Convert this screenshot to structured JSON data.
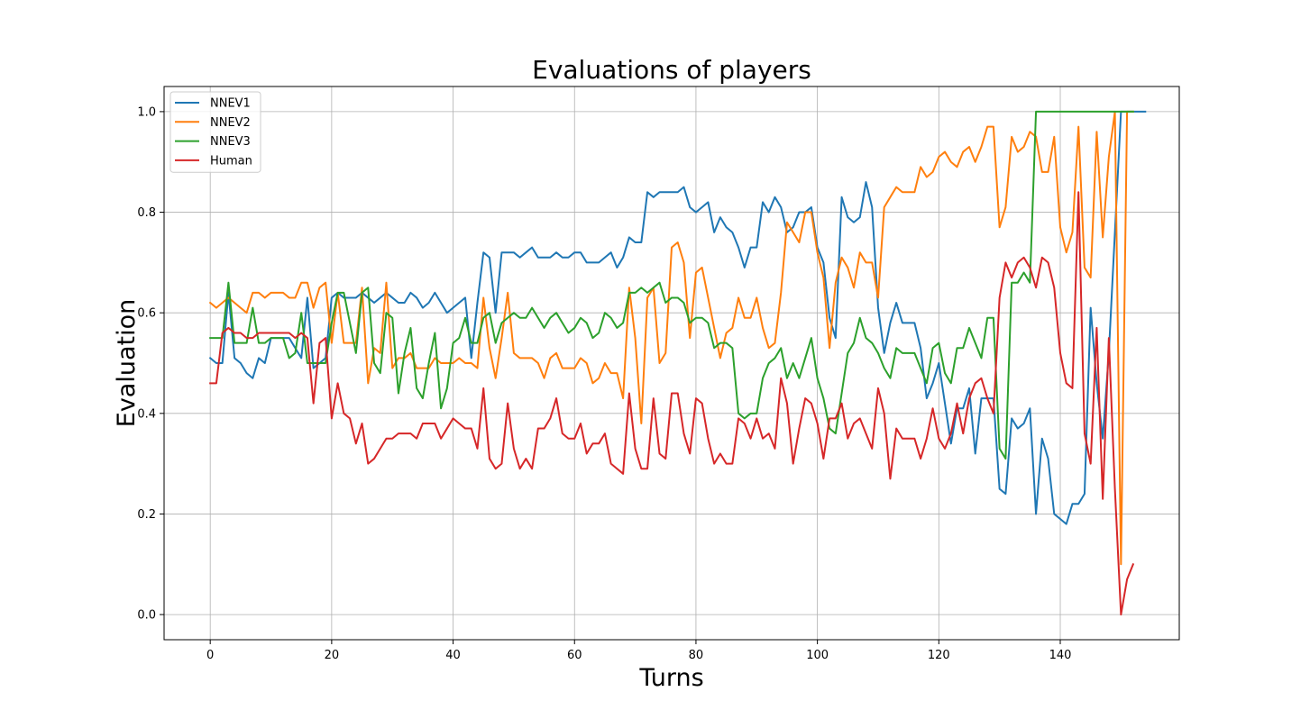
{
  "chart_data": {
    "type": "line",
    "title": "Evaluations of players",
    "xlabel": "Turns",
    "ylabel": "Evaluation",
    "xlim": [
      -7.6,
      159.6
    ],
    "ylim": [
      -0.05,
      1.05
    ],
    "xticks": [
      0,
      20,
      40,
      60,
      80,
      100,
      120,
      140
    ],
    "yticks": [
      0.0,
      0.2,
      0.4,
      0.6,
      0.8,
      1.0
    ],
    "grid": true,
    "legend_position": "top-left",
    "series": [
      {
        "name": "NNEV1",
        "color": "#1f77b4",
        "values": [
          0.51,
          0.5,
          0.5,
          0.64,
          0.51,
          0.5,
          0.48,
          0.47,
          0.51,
          0.5,
          0.55,
          0.55,
          0.55,
          0.55,
          0.53,
          0.51,
          0.63,
          0.49,
          0.5,
          0.51,
          0.63,
          0.64,
          0.63,
          0.63,
          0.63,
          0.64,
          0.63,
          0.62,
          0.63,
          0.64,
          0.63,
          0.62,
          0.62,
          0.64,
          0.63,
          0.61,
          0.62,
          0.64,
          0.62,
          0.6,
          0.61,
          0.62,
          0.63,
          0.51,
          0.62,
          0.72,
          0.71,
          0.6,
          0.72,
          0.72,
          0.72,
          0.71,
          0.72,
          0.73,
          0.71,
          0.71,
          0.71,
          0.72,
          0.71,
          0.71,
          0.72,
          0.72,
          0.7,
          0.7,
          0.7,
          0.71,
          0.72,
          0.69,
          0.71,
          0.75,
          0.74,
          0.74,
          0.84,
          0.83,
          0.84,
          0.84,
          0.84,
          0.84,
          0.85,
          0.81,
          0.8,
          0.81,
          0.82,
          0.76,
          0.79,
          0.77,
          0.76,
          0.73,
          0.69,
          0.73,
          0.73,
          0.82,
          0.8,
          0.83,
          0.81,
          0.76,
          0.77,
          0.8,
          0.8,
          0.81,
          0.73,
          0.7,
          0.59,
          0.55,
          0.83,
          0.79,
          0.78,
          0.79,
          0.86,
          0.81,
          0.61,
          0.52,
          0.58,
          0.62,
          0.58,
          0.58,
          0.58,
          0.53,
          0.43,
          0.46,
          0.5,
          0.42,
          0.34,
          0.41,
          0.41,
          0.45,
          0.32,
          0.43,
          0.43,
          0.43,
          0.25,
          0.24,
          0.39,
          0.37,
          0.38,
          0.41,
          0.2,
          0.35,
          0.31,
          0.2,
          0.19,
          0.18,
          0.22,
          0.22,
          0.24,
          0.61,
          0.46,
          0.35,
          0.52,
          0.76,
          1.0,
          1.0,
          1.0,
          1.0,
          1.0
        ]
      },
      {
        "name": "NNEV2",
        "color": "#ff7f0e",
        "values": [
          0.62,
          0.61,
          0.62,
          0.63,
          0.62,
          0.61,
          0.6,
          0.64,
          0.64,
          0.63,
          0.64,
          0.64,
          0.64,
          0.63,
          0.63,
          0.66,
          0.66,
          0.61,
          0.65,
          0.66,
          0.54,
          0.64,
          0.54,
          0.54,
          0.54,
          0.65,
          0.46,
          0.53,
          0.52,
          0.66,
          0.49,
          0.51,
          0.51,
          0.52,
          0.49,
          0.49,
          0.49,
          0.51,
          0.5,
          0.5,
          0.5,
          0.51,
          0.5,
          0.5,
          0.49,
          0.63,
          0.53,
          0.47,
          0.55,
          0.64,
          0.52,
          0.51,
          0.51,
          0.51,
          0.5,
          0.47,
          0.51,
          0.52,
          0.49,
          0.49,
          0.49,
          0.51,
          0.5,
          0.46,
          0.47,
          0.5,
          0.48,
          0.48,
          0.43,
          0.65,
          0.55,
          0.38,
          0.63,
          0.65,
          0.5,
          0.52,
          0.73,
          0.74,
          0.7,
          0.55,
          0.68,
          0.69,
          0.63,
          0.57,
          0.51,
          0.56,
          0.57,
          0.63,
          0.59,
          0.59,
          0.63,
          0.57,
          0.53,
          0.54,
          0.64,
          0.78,
          0.76,
          0.74,
          0.8,
          0.8,
          0.72,
          0.67,
          0.53,
          0.66,
          0.71,
          0.69,
          0.65,
          0.72,
          0.7,
          0.7,
          0.63,
          0.81,
          0.83,
          0.85,
          0.84,
          0.84,
          0.84,
          0.89,
          0.87,
          0.88,
          0.91,
          0.92,
          0.9,
          0.89,
          0.92,
          0.93,
          0.9,
          0.93,
          0.97,
          0.97,
          0.77,
          0.81,
          0.95,
          0.92,
          0.93,
          0.96,
          0.95,
          0.88,
          0.88,
          0.95,
          0.77,
          0.72,
          0.76,
          0.97,
          0.69,
          0.67,
          0.96,
          0.75,
          0.91,
          1.0,
          0.1,
          1.0,
          1.0
        ]
      },
      {
        "name": "NNEV3",
        "color": "#2ca02c",
        "values": [
          0.55,
          0.55,
          0.55,
          0.66,
          0.54,
          0.54,
          0.54,
          0.61,
          0.54,
          0.54,
          0.55,
          0.55,
          0.55,
          0.51,
          0.52,
          0.6,
          0.5,
          0.5,
          0.5,
          0.5,
          0.58,
          0.64,
          0.64,
          0.58,
          0.52,
          0.64,
          0.65,
          0.5,
          0.48,
          0.6,
          0.59,
          0.44,
          0.52,
          0.57,
          0.45,
          0.43,
          0.5,
          0.56,
          0.41,
          0.45,
          0.54,
          0.55,
          0.59,
          0.54,
          0.54,
          0.59,
          0.6,
          0.54,
          0.58,
          0.59,
          0.6,
          0.59,
          0.59,
          0.61,
          0.59,
          0.57,
          0.59,
          0.6,
          0.58,
          0.56,
          0.57,
          0.59,
          0.58,
          0.55,
          0.56,
          0.6,
          0.59,
          0.57,
          0.58,
          0.64,
          0.64,
          0.65,
          0.64,
          0.65,
          0.66,
          0.62,
          0.63,
          0.63,
          0.62,
          0.58,
          0.59,
          0.59,
          0.58,
          0.53,
          0.54,
          0.54,
          0.53,
          0.4,
          0.39,
          0.4,
          0.4,
          0.47,
          0.5,
          0.51,
          0.53,
          0.47,
          0.5,
          0.47,
          0.51,
          0.55,
          0.47,
          0.43,
          0.37,
          0.36,
          0.44,
          0.52,
          0.54,
          0.59,
          0.55,
          0.54,
          0.52,
          0.49,
          0.47,
          0.53,
          0.52,
          0.52,
          0.52,
          0.49,
          0.46,
          0.53,
          0.54,
          0.48,
          0.46,
          0.53,
          0.53,
          0.57,
          0.54,
          0.51,
          0.59,
          0.59,
          0.33,
          0.31,
          0.66,
          0.66,
          0.68,
          0.66,
          1.0,
          1.0,
          1.0,
          1.0,
          1.0,
          1.0,
          1.0,
          1.0,
          1.0,
          1.0,
          1.0,
          1.0,
          1.0,
          1.0,
          1.0,
          1.0,
          1.0
        ]
      },
      {
        "name": "Human",
        "color": "#d62728",
        "values": [
          0.46,
          0.46,
          0.56,
          0.57,
          0.56,
          0.56,
          0.55,
          0.55,
          0.56,
          0.56,
          0.56,
          0.56,
          0.56,
          0.56,
          0.55,
          0.56,
          0.55,
          0.42,
          0.54,
          0.55,
          0.39,
          0.46,
          0.4,
          0.39,
          0.34,
          0.38,
          0.3,
          0.31,
          0.33,
          0.35,
          0.35,
          0.36,
          0.36,
          0.36,
          0.35,
          0.38,
          0.38,
          0.38,
          0.35,
          0.37,
          0.39,
          0.38,
          0.37,
          0.37,
          0.33,
          0.45,
          0.31,
          0.29,
          0.3,
          0.42,
          0.33,
          0.29,
          0.31,
          0.29,
          0.37,
          0.37,
          0.39,
          0.43,
          0.36,
          0.35,
          0.35,
          0.38,
          0.32,
          0.34,
          0.34,
          0.36,
          0.3,
          0.29,
          0.28,
          0.44,
          0.33,
          0.29,
          0.29,
          0.43,
          0.32,
          0.31,
          0.44,
          0.44,
          0.36,
          0.32,
          0.43,
          0.42,
          0.35,
          0.3,
          0.32,
          0.3,
          0.3,
          0.39,
          0.38,
          0.35,
          0.39,
          0.35,
          0.36,
          0.33,
          0.47,
          0.42,
          0.3,
          0.37,
          0.43,
          0.42,
          0.38,
          0.31,
          0.39,
          0.39,
          0.42,
          0.35,
          0.38,
          0.39,
          0.36,
          0.33,
          0.45,
          0.4,
          0.27,
          0.37,
          0.35,
          0.35,
          0.35,
          0.31,
          0.35,
          0.41,
          0.35,
          0.33,
          0.36,
          0.42,
          0.36,
          0.43,
          0.46,
          0.47,
          0.43,
          0.4,
          0.63,
          0.7,
          0.67,
          0.7,
          0.71,
          0.69,
          0.65,
          0.71,
          0.7,
          0.65,
          0.52,
          0.46,
          0.45,
          0.84,
          0.36,
          0.3,
          0.57,
          0.23,
          0.55,
          0.25,
          0.0,
          0.07,
          0.1
        ]
      }
    ]
  }
}
